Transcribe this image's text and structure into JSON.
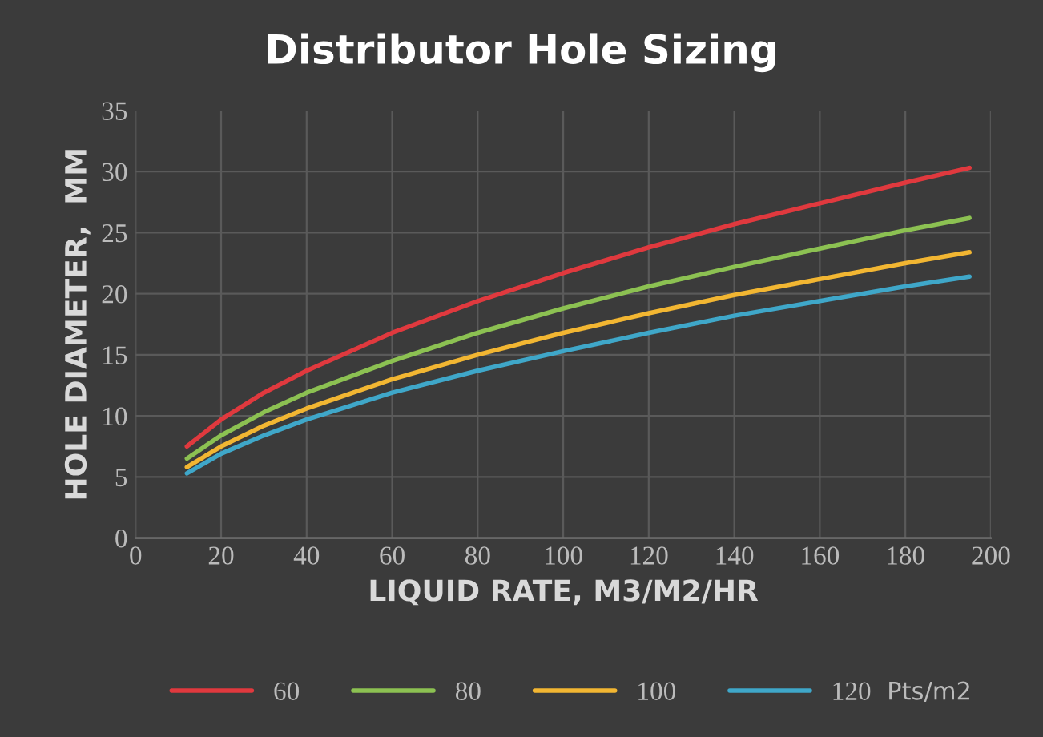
{
  "chart_data": {
    "type": "line",
    "title": "Distributor Hole Sizing",
    "xlabel": "LIQUID RATE, M3/M2/HR",
    "ylabel": "HOLE DIAMETER,  MM",
    "legend_title": "Pts/m2",
    "x": [
      12,
      20,
      30,
      40,
      60,
      80,
      100,
      120,
      140,
      160,
      180,
      195
    ],
    "series": [
      {
        "name": "60",
        "color": "#e0393e",
        "values": [
          7.5,
          9.7,
          11.9,
          13.7,
          16.8,
          19.4,
          21.7,
          23.8,
          25.7,
          27.4,
          29.1,
          30.3
        ]
      },
      {
        "name": "80",
        "color": "#8cc152",
        "values": [
          6.5,
          8.4,
          10.3,
          11.9,
          14.5,
          16.8,
          18.8,
          20.6,
          22.2,
          23.7,
          25.2,
          26.2
        ]
      },
      {
        "name": "100",
        "color": "#f2b632",
        "values": [
          5.8,
          7.5,
          9.2,
          10.6,
          13.0,
          15.0,
          16.8,
          18.4,
          19.9,
          21.2,
          22.5,
          23.4
        ]
      },
      {
        "name": "120",
        "color": "#3fa7c9",
        "values": [
          5.3,
          6.9,
          8.4,
          9.7,
          11.9,
          13.7,
          15.3,
          16.8,
          18.2,
          19.4,
          20.6,
          21.4
        ]
      }
    ],
    "xlim": [
      0,
      200
    ],
    "xticks": [
      0,
      20,
      40,
      60,
      80,
      100,
      120,
      140,
      160,
      180,
      200
    ],
    "ylim": [
      0,
      35
    ],
    "yticks": [
      0,
      5,
      10,
      15,
      20,
      25,
      30,
      35
    ],
    "grid": true,
    "legend": "bottom",
    "marker": "none",
    "line_style": "solid"
  }
}
